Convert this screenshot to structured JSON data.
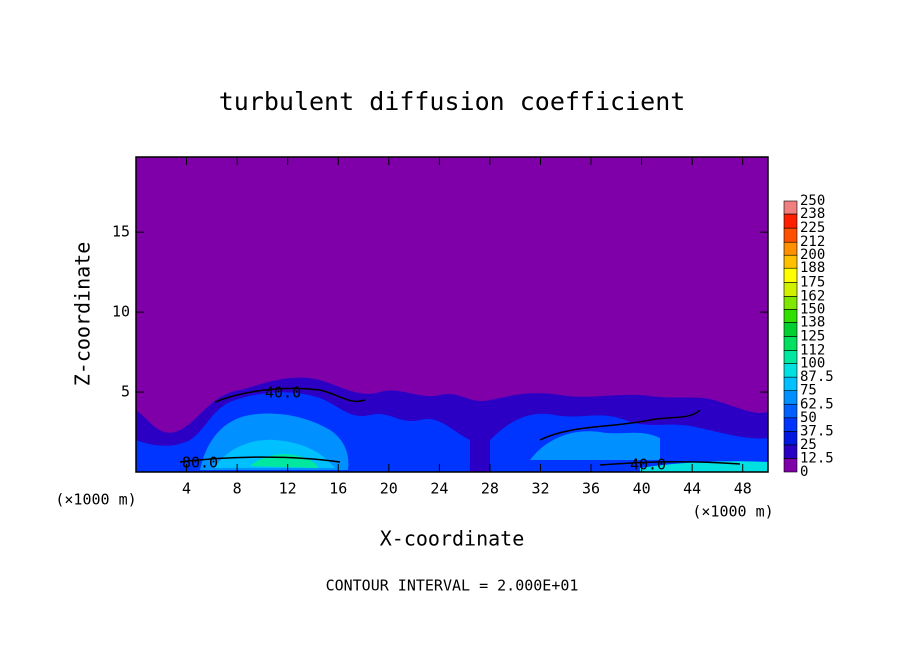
{
  "chart_data": {
    "type": "contourf",
    "title": "turbulent diffusion coefficient",
    "x_label": "X-coordinate",
    "y_label": "Z-coordinate",
    "x_unit": "(×1000 m)",
    "footer": "CONTOUR INTERVAL = 2.000E+01",
    "contour_labels": [
      "40.0",
      "80.0",
      "40.0"
    ],
    "xlim": [
      0,
      50
    ],
    "xticks": [
      4,
      8,
      12,
      16,
      20,
      24,
      28,
      32,
      36,
      40,
      44,
      48
    ],
    "ylim": [
      0,
      19.7
    ],
    "yticks": [
      5,
      10,
      15
    ],
    "levels": [
      0,
      12.5,
      25,
      37.5,
      50,
      62.5,
      75,
      87.5,
      100,
      112,
      125,
      138,
      150,
      162,
      175,
      188,
      200,
      212,
      225,
      238,
      250
    ],
    "colors": [
      "#7f00a8",
      "#2c00c4",
      "#0018e0",
      "#0034ff",
      "#0060ff",
      "#0090ff",
      "#00c0ff",
      "#00e0e0",
      "#00e8a0",
      "#00e060",
      "#00d030",
      "#30e000",
      "#80e800",
      "#d0f000",
      "#ffff00",
      "#ffc000",
      "#ff9000",
      "#ff5000",
      "#ff2000",
      "#f08080"
    ]
  }
}
